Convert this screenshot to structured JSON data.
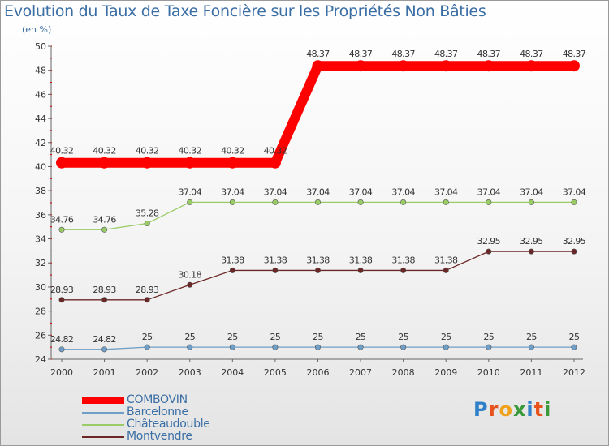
{
  "chart_data": {
    "type": "line",
    "title": "Evolution du Taux de Taxe Foncière sur les Propriétés Non Bâties",
    "subtitle": "(en %)",
    "xlabel": "",
    "ylabel": "",
    "ylim": [
      24,
      50
    ],
    "yticks": [
      24,
      26,
      28,
      30,
      32,
      34,
      36,
      38,
      40,
      42,
      44,
      46,
      48,
      50
    ],
    "categories": [
      "2000",
      "2001",
      "2002",
      "2003",
      "2004",
      "2005",
      "2006",
      "2007",
      "2008",
      "2009",
      "2010",
      "2011",
      "2012"
    ],
    "grid": false,
    "legend_position": "bottom-left",
    "series": [
      {
        "name": "COMBOVIN",
        "color": "#ff0000",
        "values": [
          40.32,
          40.32,
          40.32,
          40.32,
          40.32,
          40.32,
          48.37,
          48.37,
          48.37,
          48.37,
          48.37,
          48.37,
          48.37
        ],
        "labels": [
          "40.32",
          "40.32",
          "40.32",
          "40.32",
          "40.32",
          "40.32",
          "48.37",
          "48.37",
          "48.37",
          "48.37",
          "48.37",
          "48.37",
          "48.37"
        ]
      },
      {
        "name": "Barcelonne",
        "color": "#6f9fc7",
        "values": [
          24.82,
          24.82,
          25,
          25,
          25,
          25,
          25,
          25,
          25,
          25,
          25,
          25,
          25
        ],
        "labels": [
          "24.82",
          "24.82",
          "25",
          "25",
          "25",
          "25",
          "25",
          "25",
          "25",
          "25",
          "25",
          "25",
          "25"
        ]
      },
      {
        "name": "Châteaudouble",
        "color": "#99cc66",
        "values": [
          34.76,
          34.76,
          35.28,
          37.04,
          37.04,
          37.04,
          37.04,
          37.04,
          37.04,
          37.04,
          37.04,
          37.04,
          37.04
        ],
        "labels": [
          "34.76",
          "34.76",
          "35.28",
          "37.04",
          "37.04",
          "37.04",
          "37.04",
          "37.04",
          "37.04",
          "37.04",
          "37.04",
          "37.04",
          "37.04"
        ]
      },
      {
        "name": "Montvendre",
        "color": "#6b2626",
        "values": [
          28.93,
          28.93,
          28.93,
          30.18,
          31.38,
          31.38,
          31.38,
          31.38,
          31.38,
          31.38,
          32.95,
          32.95,
          32.95
        ],
        "labels": [
          "28.93",
          "28.93",
          "28.93",
          "30.18",
          "31.38",
          "31.38",
          "31.38",
          "31.38",
          "31.38",
          "31.38",
          "32.95",
          "32.95",
          "32.95"
        ]
      }
    ]
  },
  "legend": {
    "items": [
      {
        "label": "COMBOVIN",
        "color": "#ff0000"
      },
      {
        "label": "Barcelonne",
        "color": "#6f9fc7"
      },
      {
        "label": "Châteaudouble",
        "color": "#99cc66"
      },
      {
        "label": "Montvendre",
        "color": "#6b2626"
      }
    ]
  },
  "logo": {
    "text": "Proxiti"
  }
}
